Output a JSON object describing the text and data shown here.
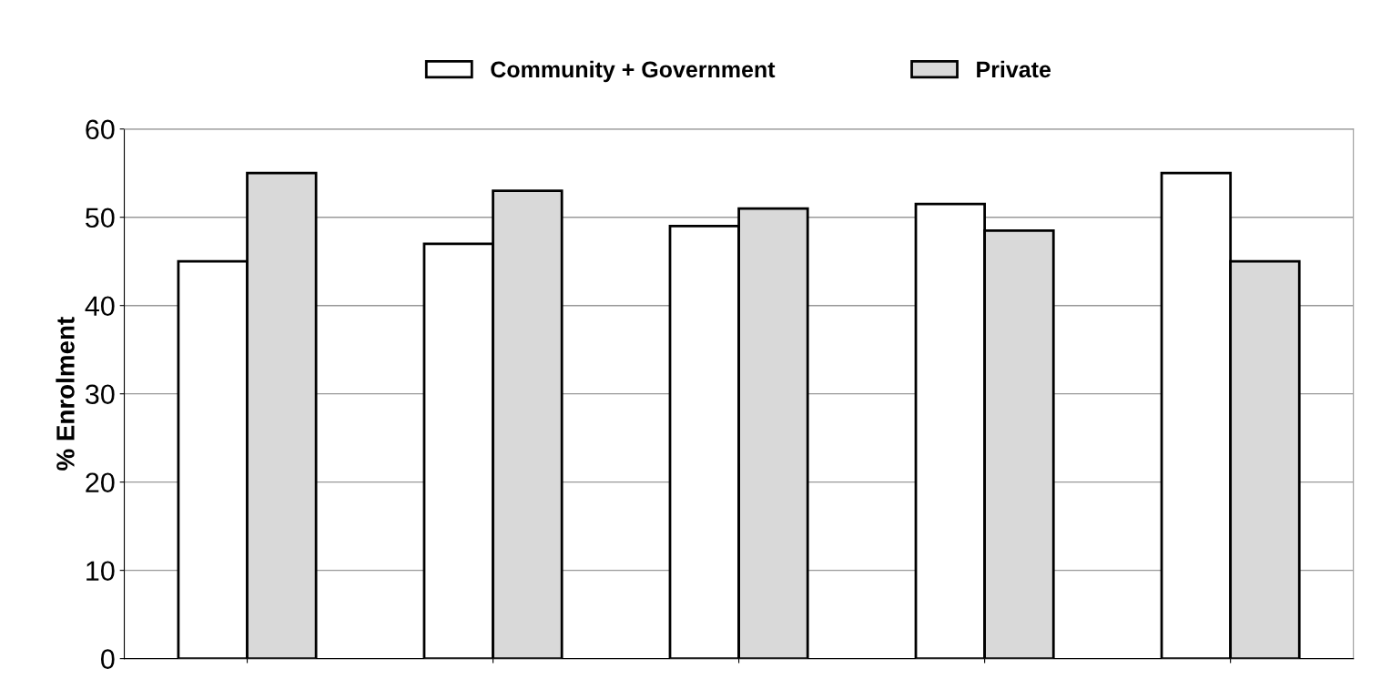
{
  "chart_data": {
    "type": "bar",
    "ylabel": "% Enrolment",
    "categories": [
      null,
      null,
      null,
      null,
      null
    ],
    "series": [
      {
        "name": "Community + Government",
        "color": "#ffffff",
        "values": [
          45,
          47,
          49,
          51.5,
          55
        ]
      },
      {
        "name": "Private",
        "color": "#d9d9d9",
        "values": [
          55,
          53,
          51,
          48.5,
          45
        ]
      }
    ],
    "ylim": [
      0,
      60
    ],
    "yticks": [
      0,
      10,
      20,
      30,
      40,
      50,
      60
    ],
    "grid": "y",
    "legend": "top",
    "tick_labels": "y"
  }
}
